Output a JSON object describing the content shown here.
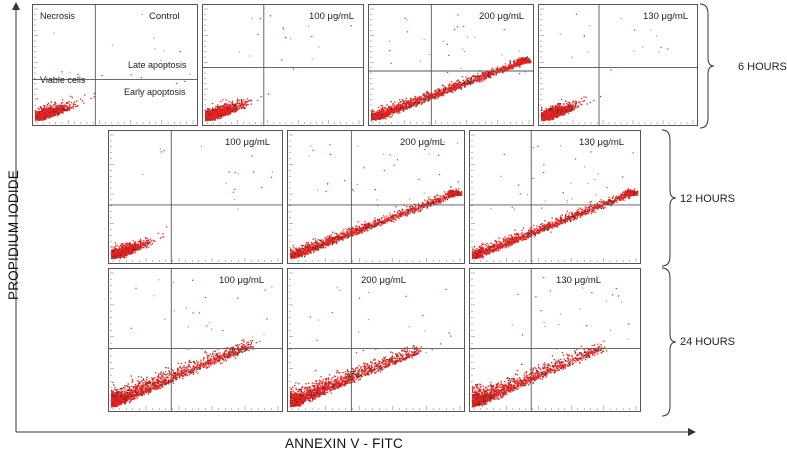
{
  "figure": {
    "y_axis_title": "PROPIDIUM IODIDE",
    "x_axis_title": "ANNEXIN V - FITC",
    "quadrant_labels": {
      "upper_left": "Necrosis",
      "lower_left": "Viable cells",
      "upper_right": "Late apoptosis",
      "lower_right": "Early apoptosis"
    },
    "rows": [
      {
        "time": "6 HOURS",
        "panels": [
          "Control",
          "100 μg/mL",
          "200 μg/mL",
          "130 μg/mL"
        ]
      },
      {
        "time": "12 HOURS",
        "panels": [
          "100 μg/mL",
          "200 μg/mL",
          "130 μg/mL"
        ]
      },
      {
        "time": "24 HOURS",
        "panels": [
          "100 μg/mL",
          "200 μg/mL",
          "130 μg/mL"
        ]
      }
    ],
    "colors": {
      "dots": "#e8221e",
      "dark_dots": "#333333",
      "gate_lines": "#555555",
      "brackets": "#333333"
    }
  },
  "chart_data": {
    "type": "scatter",
    "title": "",
    "xlabel": "ANNEXIN V - FITC",
    "ylabel": "PROPIDIUM IODIDE",
    "scale": "log",
    "quadrants": [
      "Necrosis",
      "Late apoptosis",
      "Viable cells",
      "Early apoptosis"
    ],
    "panels": [
      {
        "time": "6 HOURS",
        "label": "Control",
        "density": 0.45,
        "spread": 0.3,
        "cluster": "compact"
      },
      {
        "time": "6 HOURS",
        "label": "100 μg/mL",
        "density": 0.65,
        "spread": 0.35,
        "cluster": "compact"
      },
      {
        "time": "6 HOURS",
        "label": "200 μg/mL",
        "density": 1.0,
        "spread": 0.75,
        "cluster": "elongated"
      },
      {
        "time": "6 HOURS",
        "label": "130 μg/mL",
        "density": 0.55,
        "spread": 0.3,
        "cluster": "compact"
      },
      {
        "time": "12 HOURS",
        "label": "100 μg/mL",
        "density": 0.45,
        "spread": 0.3,
        "cluster": "compact"
      },
      {
        "time": "12 HOURS",
        "label": "200 μg/mL",
        "density": 1.0,
        "spread": 0.95,
        "cluster": "elongated"
      },
      {
        "time": "12 HOURS",
        "label": "130 μg/mL",
        "density": 1.0,
        "spread": 1.0,
        "cluster": "elongated"
      },
      {
        "time": "24 HOURS",
        "label": "100 μg/mL",
        "density": 0.85,
        "spread": 0.65,
        "cluster": "broad"
      },
      {
        "time": "24 HOURS",
        "label": "200 μg/mL",
        "density": 0.85,
        "spread": 0.55,
        "cluster": "broad"
      },
      {
        "time": "24 HOURS",
        "label": "130 μg/mL",
        "density": 0.7,
        "spread": 0.6,
        "cluster": "broad"
      }
    ]
  }
}
